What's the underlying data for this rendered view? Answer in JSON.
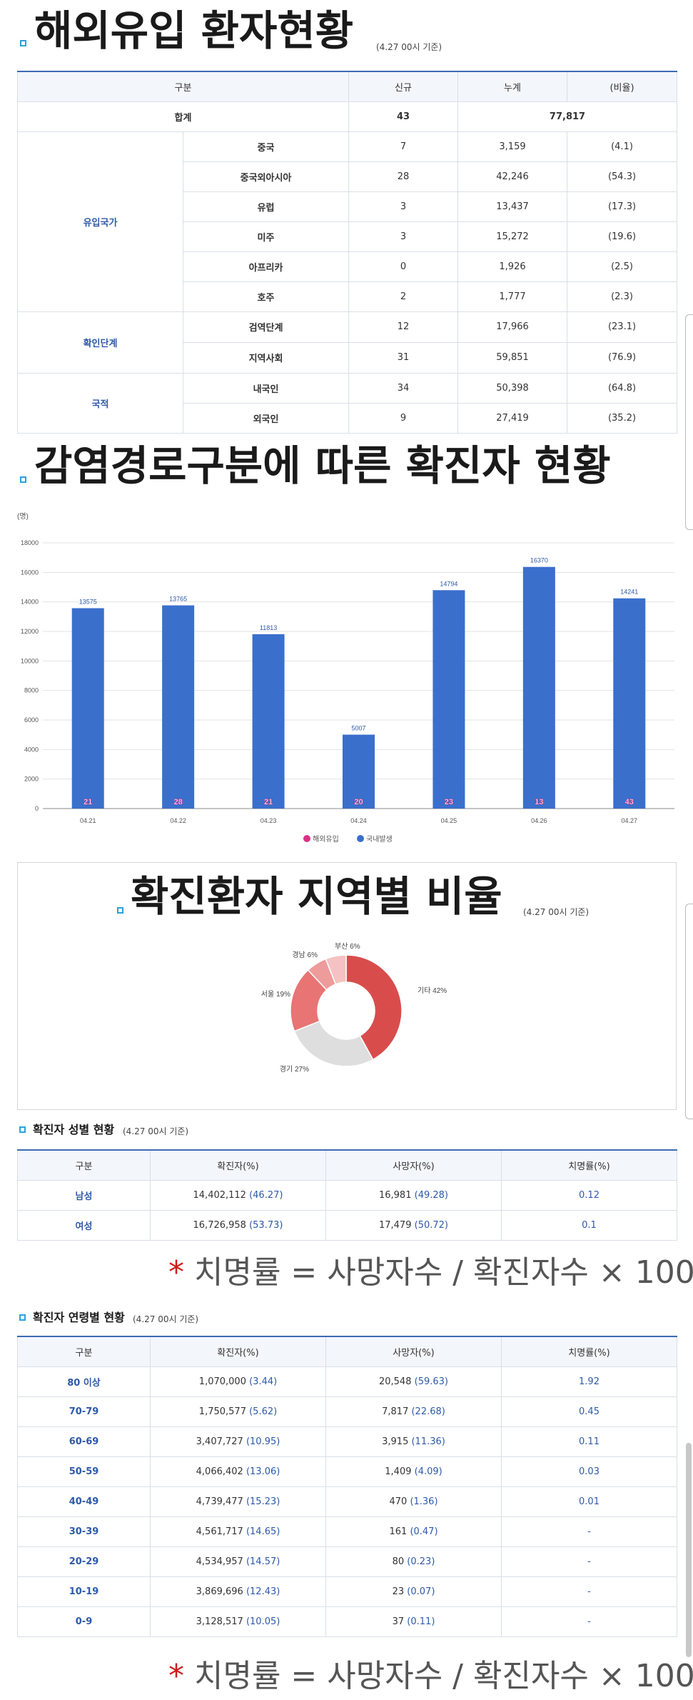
{
  "section1": {
    "title": "해외유입 환자현황",
    "note": "(4.27 00시 기준)",
    "headers": [
      "구분",
      "신규",
      "누계",
      "(비율)"
    ],
    "total": {
      "label": "합계",
      "new": "43",
      "cum": "77,817"
    },
    "groups": [
      {
        "name": "유입국가",
        "rows": [
          {
            "label": "중국",
            "new": "7",
            "cum": "3,159",
            "ratio": "(4.1)"
          },
          {
            "label": "중국외아시아",
            "new": "28",
            "cum": "42,246",
            "ratio": "(54.3)"
          },
          {
            "label": "유럽",
            "new": "3",
            "cum": "13,437",
            "ratio": "(17.3)"
          },
          {
            "label": "미주",
            "new": "3",
            "cum": "15,272",
            "ratio": "(19.6)"
          },
          {
            "label": "아프리카",
            "new": "0",
            "cum": "1,926",
            "ratio": "(2.5)"
          },
          {
            "label": "호주",
            "new": "2",
            "cum": "1,777",
            "ratio": "(2.3)"
          }
        ]
      },
      {
        "name": "확인단계",
        "rows": [
          {
            "label": "검역단계",
            "new": "12",
            "cum": "17,966",
            "ratio": "(23.1)"
          },
          {
            "label": "지역사회",
            "new": "31",
            "cum": "59,851",
            "ratio": "(76.9)"
          }
        ]
      },
      {
        "name": "국적",
        "rows": [
          {
            "label": "내국인",
            "new": "34",
            "cum": "50,398",
            "ratio": "(64.8)"
          },
          {
            "label": "외국인",
            "new": "9",
            "cum": "27,419",
            "ratio": "(35.2)"
          }
        ]
      }
    ]
  },
  "section2": {
    "title": "감염경로구분에 따른 확진자 현황"
  },
  "chart_data": [
    {
      "type": "bar",
      "ylabel": "(명)",
      "ylim": [
        0,
        18000
      ],
      "yticks": [
        0,
        2000,
        4000,
        6000,
        8000,
        10000,
        12000,
        14000,
        16000,
        18000
      ],
      "categories": [
        "04.21",
        "04.22",
        "04.23",
        "04.24",
        "04.25",
        "04.26",
        "04.27"
      ],
      "series": [
        {
          "name": "해외유입",
          "color": "#d63384",
          "values": [
            21,
            28,
            21,
            20,
            23,
            13,
            43
          ]
        },
        {
          "name": "국내발생",
          "color": "#3a6fcc",
          "values": [
            13575,
            13765,
            11813,
            5007,
            14794,
            16370,
            14241
          ]
        }
      ],
      "grid": true,
      "legend": "bottom"
    },
    {
      "type": "pie",
      "title": "확진환자 지역별 비율",
      "note": "(4.27 00시 기준)",
      "slices": [
        {
          "label": "기타",
          "pct": 42,
          "text": "기타 42%",
          "color": "#d94c4c"
        },
        {
          "label": "경기",
          "pct": 27,
          "text": "경기 27%",
          "color": "#dedede"
        },
        {
          "label": "서울",
          "pct": 19,
          "text": "서울 19%",
          "color": "#e87474"
        },
        {
          "label": "경남",
          "pct": 6,
          "text": "경남 6%",
          "color": "#ee9b9b"
        },
        {
          "label": "부산",
          "pct": 6,
          "text": "부산 6%",
          "color": "#f4c2c2"
        }
      ]
    }
  ],
  "gender": {
    "title": "확진자 성별 현황",
    "note": "(4.27 00시 기준)",
    "headers": [
      "구분",
      "확진자(%)",
      "사망자(%)",
      "치명률(%)"
    ],
    "rows": [
      {
        "label": "남성",
        "conf": "14,402,112",
        "conf_pct": "(46.27)",
        "death": "16,981",
        "death_pct": "(49.28)",
        "rate": "0.12"
      },
      {
        "label": "여성",
        "conf": "16,726,958",
        "conf_pct": "(53.73)",
        "death": "17,479",
        "death_pct": "(50.72)",
        "rate": "0.1"
      }
    ],
    "formula": "치명률 = 사망자수 / 확진자수 × 100"
  },
  "age": {
    "title": "확진자 연령별 현황",
    "note": "(4.27 00시 기준)",
    "headers": [
      "구분",
      "확진자(%)",
      "사망자(%)",
      "치명률(%)"
    ],
    "rows": [
      {
        "label": "80 이상",
        "conf": "1,070,000",
        "conf_pct": "(3.44)",
        "death": "20,548",
        "death_pct": "(59.63)",
        "rate": "1.92"
      },
      {
        "label": "70-79",
        "conf": "1,750,577",
        "conf_pct": "(5.62)",
        "death": "7,817",
        "death_pct": "(22.68)",
        "rate": "0.45"
      },
      {
        "label": "60-69",
        "conf": "3,407,727",
        "conf_pct": "(10.95)",
        "death": "3,915",
        "death_pct": "(11.36)",
        "rate": "0.11"
      },
      {
        "label": "50-59",
        "conf": "4,066,402",
        "conf_pct": "(13.06)",
        "death": "1,409",
        "death_pct": "(4.09)",
        "rate": "0.03"
      },
      {
        "label": "40-49",
        "conf": "4,739,477",
        "conf_pct": "(15.23)",
        "death": "470",
        "death_pct": "(1.36)",
        "rate": "0.01"
      },
      {
        "label": "30-39",
        "conf": "4,561,717",
        "conf_pct": "(14.65)",
        "death": "161",
        "death_pct": "(0.47)",
        "rate": "-"
      },
      {
        "label": "20-29",
        "conf": "4,534,957",
        "conf_pct": "(14.57)",
        "death": "80",
        "death_pct": "(0.23)",
        "rate": "-"
      },
      {
        "label": "10-19",
        "conf": "3,869,696",
        "conf_pct": "(12.43)",
        "death": "23",
        "death_pct": "(0.07)",
        "rate": "-"
      },
      {
        "label": "0-9",
        "conf": "3,128,517",
        "conf_pct": "(10.05)",
        "death": "37",
        "death_pct": "(0.11)",
        "rate": "-"
      }
    ],
    "formula": "치명률 = 사망자수 / 확진자수 × 100"
  }
}
